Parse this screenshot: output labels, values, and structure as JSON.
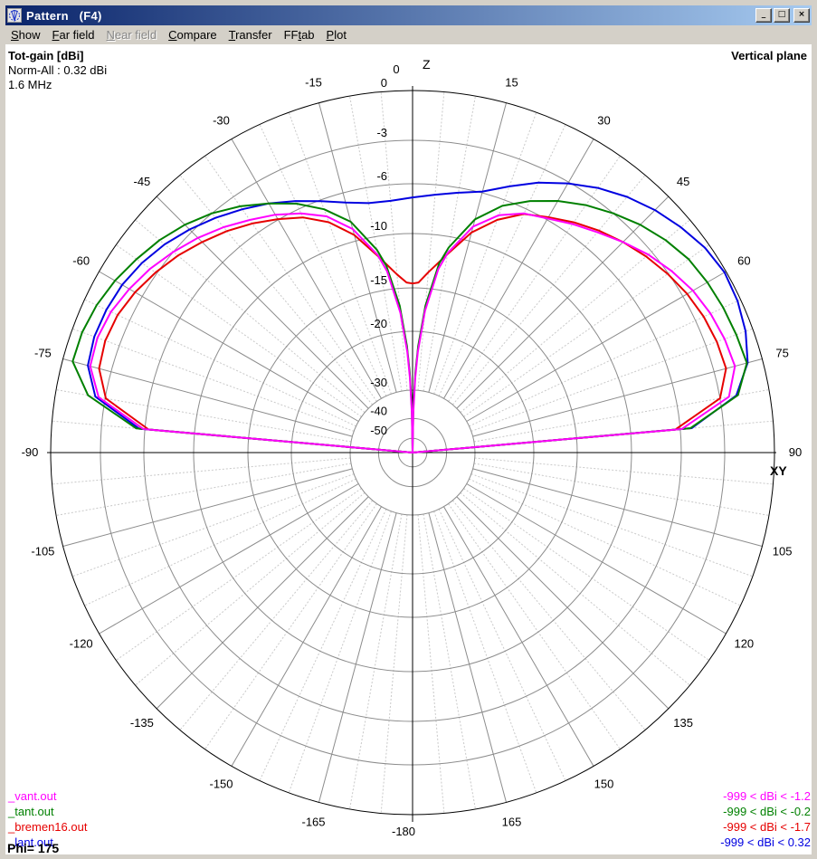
{
  "window": {
    "title": "Pattern   (F4)",
    "icon": "pattern-app-icon",
    "buttons": {
      "minimize": "_",
      "maximize": "□",
      "close": "×"
    }
  },
  "menu": {
    "items": [
      {
        "label": "Show",
        "underline": 0,
        "disabled": false
      },
      {
        "label": "Far field",
        "underline": 0,
        "disabled": false
      },
      {
        "label": "Near field",
        "underline": 0,
        "disabled": true
      },
      {
        "label": "Compare",
        "underline": 0,
        "disabled": false
      },
      {
        "label": "Transfer",
        "underline": 0,
        "disabled": false
      },
      {
        "label": "FFtab",
        "underline": 2,
        "disabled": false
      },
      {
        "label": "Plot",
        "underline": 0,
        "disabled": false
      }
    ]
  },
  "header": {
    "left_title": "Tot-gain [dBi]",
    "left_sub1": "Norm-All : 0.32 dBi",
    "left_sub2": "1.6 MHz",
    "right_title": "Vertical plane"
  },
  "status": {
    "phi_label": "Phi= 175"
  },
  "chart_data": {
    "type": "polar-radiation",
    "title": "Tot-gain [dBi] - Vertical plane",
    "frequency": "1.6 MHz",
    "normalization": "Norm-All : 0.32 dBi",
    "axis_labels": {
      "top": "Z",
      "right": "XY",
      "zenith_angle_label": "0",
      "bottom_angle_label": "-180"
    },
    "db_rings": [
      0,
      -3,
      -6,
      -10,
      -15,
      -20,
      -30,
      -40,
      -50
    ],
    "db_scale": [
      [
        0,
        1.0
      ],
      [
        -3,
        0.8625
      ],
      [
        -6,
        0.7425
      ],
      [
        -10,
        0.605
      ],
      [
        -15,
        0.455
      ],
      [
        -20,
        0.335
      ],
      [
        -30,
        0.1725
      ],
      [
        -40,
        0.094
      ],
      [
        -50,
        0.0395
      ],
      [
        -55,
        0.0
      ]
    ],
    "angle_minor_step": 5,
    "angle_major_step": 15,
    "angle_labels": [
      0,
      15,
      30,
      45,
      60,
      75,
      90,
      105,
      120,
      135,
      150,
      165,
      -180,
      -165,
      -150,
      -135,
      -120,
      -105,
      -90,
      -75,
      -60,
      -45,
      -30,
      -15
    ],
    "grid_colors": {
      "major_spoke": "#8c8c8c",
      "minor_spoke": "#c9c9c9",
      "ring": "#8c8c8c",
      "outer_ring": "#000000",
      "axis": "#000000"
    },
    "series": [
      {
        "name": "vant",
        "file": "_vant.out",
        "color": "#ff00ff",
        "range_label": "-999 < dBi < -1.2",
        "points": [
          [
            -90,
            -999
          ],
          [
            -85,
            -5.9
          ],
          [
            -80,
            -2.6
          ],
          [
            -75,
            -1.7
          ],
          [
            -70,
            -1.6
          ],
          [
            -65,
            -1.75
          ],
          [
            -60,
            -2.1
          ],
          [
            -55,
            -2.5
          ],
          [
            -50,
            -3.0
          ],
          [
            -45,
            -3.6
          ],
          [
            -40,
            -4.25
          ],
          [
            -35,
            -4.95
          ],
          [
            -30,
            -5.6
          ],
          [
            -25,
            -6.4
          ],
          [
            -20,
            -7.4
          ],
          [
            -15,
            -9.0
          ],
          [
            -10,
            -11.7
          ],
          [
            -8,
            -13.3
          ],
          [
            -5,
            -17.8
          ],
          [
            -3,
            -23.5
          ],
          [
            -2,
            -28
          ],
          [
            -1,
            -38
          ],
          [
            0,
            -999
          ],
          [
            1,
            -38
          ],
          [
            2,
            -28
          ],
          [
            3,
            -23.5
          ],
          [
            5,
            -17.6
          ],
          [
            8,
            -13.1
          ],
          [
            10,
            -11.5
          ],
          [
            15,
            -8.8
          ],
          [
            20,
            -7.3
          ],
          [
            25,
            -6.4
          ],
          [
            30,
            -5.9
          ],
          [
            35,
            -5.3
          ],
          [
            40,
            -4.7
          ],
          [
            45,
            -4.0
          ],
          [
            50,
            -3.3
          ],
          [
            55,
            -2.75
          ],
          [
            60,
            -2.3
          ],
          [
            65,
            -2.0
          ],
          [
            70,
            -1.8
          ],
          [
            75,
            -1.7
          ],
          [
            80,
            -2.45
          ],
          [
            85,
            -5.9
          ],
          [
            90,
            -999
          ]
        ]
      },
      {
        "name": "tant",
        "file": "_tant.out",
        "color": "#008000",
        "range_label": "-999 < dBi < -0.2",
        "points": [
          [
            -90,
            -999
          ],
          [
            -85,
            -5.4
          ],
          [
            -80,
            -1.95
          ],
          [
            -75,
            -0.6
          ],
          [
            -70,
            -0.62
          ],
          [
            -65,
            -0.8
          ],
          [
            -60,
            -1.1
          ],
          [
            -55,
            -1.5
          ],
          [
            -50,
            -1.9
          ],
          [
            -45,
            -2.4
          ],
          [
            -40,
            -3.0
          ],
          [
            -35,
            -3.8
          ],
          [
            -30,
            -4.7
          ],
          [
            -25,
            -5.6
          ],
          [
            -20,
            -6.8
          ],
          [
            -15,
            -8.4
          ],
          [
            -10,
            -11.2
          ],
          [
            -8,
            -12.8
          ],
          [
            -5,
            -17.0
          ],
          [
            -3,
            -22.5
          ],
          [
            -2,
            -27
          ],
          [
            -1,
            -36
          ],
          [
            0,
            -999
          ],
          [
            1,
            -36
          ],
          [
            2,
            -27
          ],
          [
            3,
            -22.5
          ],
          [
            5,
            -17.0
          ],
          [
            8,
            -12.6
          ],
          [
            10,
            -11.0
          ],
          [
            15,
            -8.2
          ],
          [
            20,
            -6.5
          ],
          [
            25,
            -5.4
          ],
          [
            30,
            -4.5
          ],
          [
            35,
            -3.7
          ],
          [
            40,
            -3.0
          ],
          [
            45,
            -2.4
          ],
          [
            50,
            -1.9
          ],
          [
            55,
            -1.5
          ],
          [
            60,
            -1.3
          ],
          [
            65,
            -1.15
          ],
          [
            70,
            -1.05
          ],
          [
            75,
            -0.95
          ],
          [
            80,
            -1.9
          ],
          [
            85,
            -5.3
          ],
          [
            90,
            -999
          ]
        ]
      },
      {
        "name": "bremen16",
        "file": "_bremen16.out",
        "color": "#e60000",
        "range_label": "-999 < dBi < -1.7",
        "points": [
          [
            -90,
            -999
          ],
          [
            -85,
            -6.3
          ],
          [
            -80,
            -3.05
          ],
          [
            -75,
            -2.25
          ],
          [
            -70,
            -2.1
          ],
          [
            -65,
            -2.2
          ],
          [
            -60,
            -2.5
          ],
          [
            -55,
            -2.9
          ],
          [
            -50,
            -3.4
          ],
          [
            -45,
            -4.0
          ],
          [
            -40,
            -4.6
          ],
          [
            -35,
            -5.25
          ],
          [
            -30,
            -5.95
          ],
          [
            -25,
            -6.75
          ],
          [
            -20,
            -7.9
          ],
          [
            -15,
            -9.5
          ],
          [
            -10,
            -11.8
          ],
          [
            -5,
            -13.7
          ],
          [
            -2,
            -14.5
          ],
          [
            0,
            -14.6
          ],
          [
            2,
            -14.5
          ],
          [
            5,
            -13.5
          ],
          [
            10,
            -11.6
          ],
          [
            15,
            -9.3
          ],
          [
            20,
            -7.7
          ],
          [
            25,
            -6.45
          ],
          [
            30,
            -5.8
          ],
          [
            35,
            -5.15
          ],
          [
            40,
            -4.55
          ],
          [
            45,
            -4.0
          ],
          [
            50,
            -3.5
          ],
          [
            55,
            -3.05
          ],
          [
            60,
            -2.7
          ],
          [
            65,
            -2.45
          ],
          [
            70,
            -2.3
          ],
          [
            75,
            -2.25
          ],
          [
            80,
            -3.0
          ],
          [
            85,
            -6.4
          ],
          [
            90,
            -999
          ]
        ]
      },
      {
        "name": "lant",
        "file": "_lant.out",
        "color": "#0000e0",
        "range_label": "-999 < dBi < 0.32",
        "points": [
          [
            -90,
            -999
          ],
          [
            -85,
            -5.6
          ],
          [
            -80,
            -2.4
          ],
          [
            -75,
            -1.55
          ],
          [
            -70,
            -1.4
          ],
          [
            -65,
            -1.45
          ],
          [
            -60,
            -1.6
          ],
          [
            -55,
            -1.9
          ],
          [
            -50,
            -2.3
          ],
          [
            -45,
            -2.8
          ],
          [
            -40,
            -3.4
          ],
          [
            -35,
            -4.05
          ],
          [
            -30,
            -4.7
          ],
          [
            -25,
            -5.4
          ],
          [
            -20,
            -6.1
          ],
          [
            -15,
            -6.8
          ],
          [
            -10,
            -7.25
          ],
          [
            -5,
            -7.3
          ],
          [
            0,
            -7.1
          ],
          [
            5,
            -6.8
          ],
          [
            10,
            -6.4
          ],
          [
            15,
            -5.9
          ],
          [
            20,
            -5.0
          ],
          [
            25,
            -4.0
          ],
          [
            30,
            -3.1
          ],
          [
            35,
            -2.35
          ],
          [
            40,
            -1.7
          ],
          [
            45,
            -1.15
          ],
          [
            50,
            -0.7
          ],
          [
            55,
            -0.3
          ],
          [
            60,
            -0.1
          ],
          [
            65,
            -0.2
          ],
          [
            70,
            -0.45
          ],
          [
            75,
            -0.9
          ],
          [
            80,
            -2.0
          ],
          [
            85,
            -5.2
          ],
          [
            90,
            -999
          ]
        ]
      }
    ]
  }
}
